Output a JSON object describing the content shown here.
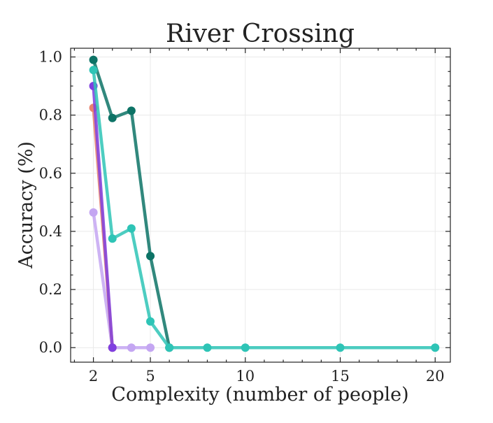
{
  "chart_data": {
    "type": "line",
    "title": "River Crossing",
    "xlabel": "Complexity (number of people)",
    "ylabel": "Accuracy (%)",
    "xlim": [
      0.8,
      20.8
    ],
    "ylim": [
      -0.05,
      1.03
    ],
    "xticks": [
      2,
      5,
      10,
      15,
      20
    ],
    "yticks": [
      0.0,
      0.2,
      0.4,
      0.6,
      0.8,
      1.0
    ],
    "xtick_labels": [
      "2",
      "5",
      "10",
      "15",
      "20"
    ],
    "ytick_labels": [
      "0.0",
      "0.2",
      "0.4",
      "0.6",
      "0.8",
      "1.0"
    ],
    "grid": true,
    "series": [
      {
        "color": "#c4a6f2",
        "x": [
          2,
          3,
          4,
          5
        ],
        "y": [
          0.465,
          0.0,
          0.0,
          0.0
        ]
      },
      {
        "color": "#e8826f",
        "x": [
          2,
          3
        ],
        "y": [
          0.825,
          0.0
        ]
      },
      {
        "color": "#7f3fe0",
        "x": [
          2,
          3
        ],
        "y": [
          0.9,
          0.0
        ]
      },
      {
        "color": "#0d7366",
        "x": [
          2,
          3,
          4,
          5,
          6
        ],
        "y": [
          0.99,
          0.79,
          0.815,
          0.315,
          0.0
        ]
      },
      {
        "color": "#2ec4b6",
        "x": [
          2,
          3,
          4,
          5,
          6,
          8,
          10,
          15,
          20
        ],
        "y": [
          0.955,
          0.375,
          0.41,
          0.09,
          0.0,
          0.0,
          0.0,
          0.0,
          0.0
        ]
      }
    ]
  }
}
